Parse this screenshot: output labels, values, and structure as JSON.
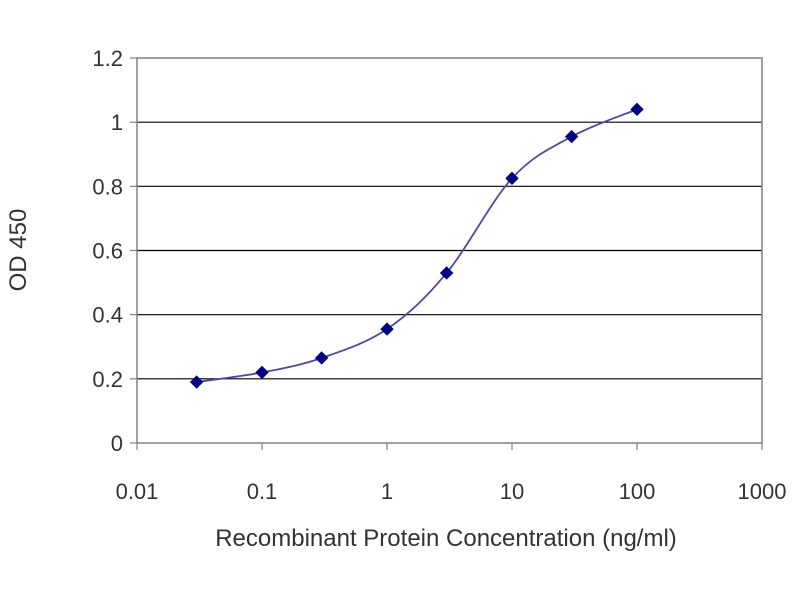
{
  "chart_data": {
    "type": "line",
    "xlabel": "Recombinant Protein Concentration (ng/ml)",
    "ylabel": "OD 450",
    "x_scale": "log",
    "xlim": [
      0.01,
      1000
    ],
    "ylim": [
      0,
      1.2
    ],
    "x_ticks": [
      "0.01",
      "0.1",
      "1",
      "10",
      "100",
      "1000"
    ],
    "y_ticks": [
      "0",
      "0.2",
      "0.4",
      "0.6",
      "0.8",
      "1",
      "1.2"
    ],
    "grid": "horizontal",
    "series": [
      {
        "color": "#000080",
        "line_color": "#4a4aa0",
        "marker": "diamond",
        "x": [
          0.03,
          0.1,
          0.3,
          1,
          3,
          10,
          30,
          100
        ],
        "y": [
          0.19,
          0.22,
          0.265,
          0.355,
          0.53,
          0.825,
          0.955,
          1.04
        ]
      }
    ]
  }
}
